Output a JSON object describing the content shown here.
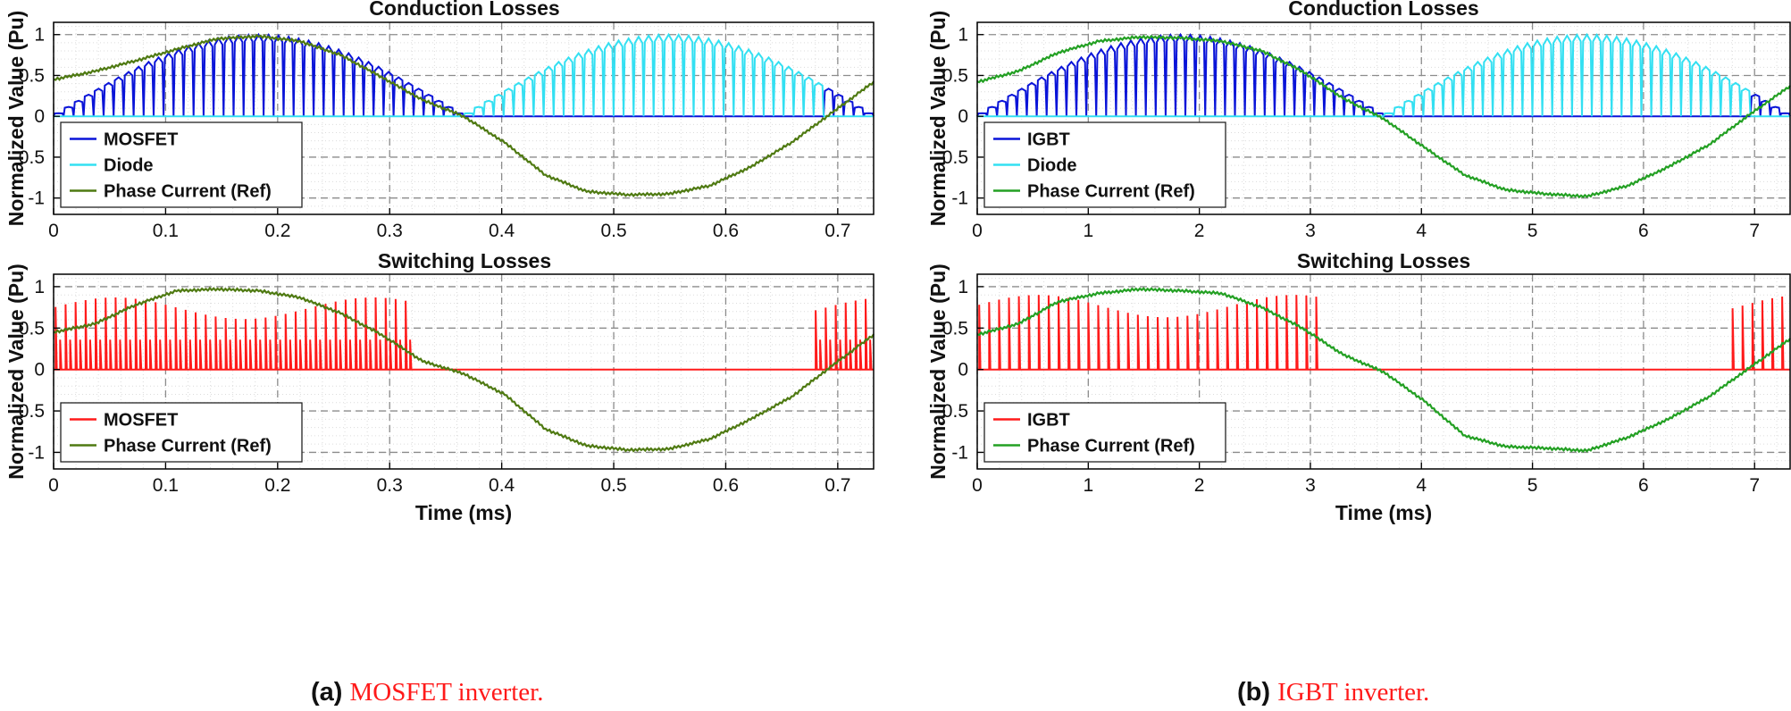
{
  "chart_data": [
    {
      "type": "line",
      "title": "Conduction Losses",
      "xlabel": "",
      "ylabel": "Normalized Value (Pu)",
      "xlim": [
        0,
        0.732
      ],
      "ylim": [
        -1.2,
        1.15
      ],
      "xticks": [
        0,
        0.1,
        0.2,
        0.3,
        0.4,
        0.5,
        0.6,
        0.7
      ],
      "xtick_labels": [
        "0",
        "0.1",
        "0.2",
        "0.3",
        "0.4",
        "0.5",
        "0.6",
        "0.7"
      ],
      "yticks": [
        -1,
        -0.5,
        0,
        0.5,
        1
      ],
      "ytick_labels": [
        "-1",
        "-0.5",
        "0",
        "0.5",
        "1"
      ],
      "grid": true,
      "legend_position": "bottom-left",
      "x_period": 0.732,
      "pulses_per_period": 82,
      "series": [
        {
          "name": "MOSFET",
          "color": "#0a14d8",
          "kind": "device-pulse",
          "peak": 1.0,
          "from_ratio": 0,
          "to_ratio": 0.5
        },
        {
          "name": "Diode",
          "color": "#33e0f2",
          "kind": "device-pulse",
          "peak": 1.0,
          "from_ratio": 0.5,
          "to_ratio": 1.0
        },
        {
          "name": "Phase Current (Ref)",
          "color": "#4f7a12",
          "kind": "reference",
          "x_ratio": [
            0,
            0.05,
            0.1,
            0.15,
            0.2,
            0.25,
            0.3,
            0.35,
            0.4,
            0.45,
            0.5,
            0.55,
            0.6,
            0.65,
            0.7,
            0.75,
            0.8,
            0.85,
            0.9,
            0.95,
            1.0
          ],
          "values": [
            0.45,
            0.55,
            0.68,
            0.82,
            0.95,
            0.98,
            0.92,
            0.75,
            0.48,
            0.2,
            0.0,
            -0.32,
            -0.72,
            -0.92,
            -0.96,
            -0.95,
            -0.85,
            -0.62,
            -0.32,
            0.05,
            0.42
          ]
        }
      ]
    },
    {
      "type": "line",
      "title": "Conduction Losses",
      "xlabel": "",
      "ylabel": "Normalized Value (Pu)",
      "xlim": [
        0,
        7.32
      ],
      "ylim": [
        -1.2,
        1.15
      ],
      "xticks": [
        0,
        1,
        2,
        3,
        4,
        5,
        6,
        7
      ],
      "xtick_labels": [
        "0",
        "1",
        "2",
        "3",
        "4",
        "5",
        "6",
        "7"
      ],
      "yticks": [
        -1,
        -0.5,
        0,
        0.5,
        1
      ],
      "ytick_labels": [
        "-1",
        "-0.5",
        "0",
        "0.5",
        "1"
      ],
      "grid": true,
      "legend_position": "bottom-left",
      "x_period": 7.32,
      "pulses_per_period": 82,
      "series": [
        {
          "name": "IGBT",
          "color": "#0a14d8",
          "kind": "device-pulse",
          "peak": 1.0,
          "from_ratio": 0,
          "to_ratio": 0.5
        },
        {
          "name": "Diode",
          "color": "#33e0f2",
          "kind": "device-pulse",
          "peak": 1.0,
          "from_ratio": 0.5,
          "to_ratio": 1.0
        },
        {
          "name": "Phase Current (Ref)",
          "color": "#23a023",
          "kind": "reference",
          "x_ratio": [
            0,
            0.05,
            0.1,
            0.15,
            0.2,
            0.25,
            0.3,
            0.35,
            0.4,
            0.45,
            0.5,
            0.55,
            0.6,
            0.65,
            0.7,
            0.75,
            0.8,
            0.85,
            0.9,
            0.95,
            1.0
          ],
          "values": [
            0.42,
            0.55,
            0.78,
            0.92,
            0.97,
            0.96,
            0.92,
            0.8,
            0.55,
            0.22,
            -0.03,
            -0.38,
            -0.72,
            -0.9,
            -0.95,
            -0.98,
            -0.85,
            -0.62,
            -0.35,
            0.02,
            0.37
          ]
        }
      ]
    },
    {
      "type": "line",
      "title": "Switching Losses",
      "xlabel": "Time (ms)",
      "ylabel": "Normalized Value (Pu)",
      "xlim": [
        0,
        0.732
      ],
      "ylim": [
        -1.2,
        1.15
      ],
      "xticks": [
        0,
        0.1,
        0.2,
        0.3,
        0.4,
        0.5,
        0.6,
        0.7
      ],
      "xtick_labels": [
        "0",
        "0.1",
        "0.2",
        "0.3",
        "0.4",
        "0.5",
        "0.6",
        "0.7"
      ],
      "yticks": [
        -1,
        -0.5,
        0,
        0.5,
        1
      ],
      "ytick_labels": [
        "-1",
        "-0.5",
        "0",
        "0.5",
        "1"
      ],
      "grid": true,
      "legend_position": "bottom-left",
      "x_period": 0.732,
      "pulses_per_period": 82,
      "series": [
        {
          "name": "MOSFET",
          "color": "#ff1a1a",
          "kind": "switch-pulse",
          "peak": 0.87,
          "secondary": 0.36,
          "active_until_ratio": 0.435,
          "active_from_ratio": 0.93
        },
        {
          "name": "Phase Current (Ref)",
          "color": "#4f7a12",
          "kind": "reference",
          "x_ratio": [
            0,
            0.05,
            0.1,
            0.15,
            0.2,
            0.25,
            0.3,
            0.35,
            0.4,
            0.45,
            0.5,
            0.55,
            0.6,
            0.65,
            0.7,
            0.75,
            0.8,
            0.85,
            0.9,
            0.95,
            1.0
          ],
          "values": [
            0.45,
            0.55,
            0.78,
            0.95,
            0.97,
            0.95,
            0.87,
            0.68,
            0.42,
            0.1,
            -0.05,
            -0.3,
            -0.72,
            -0.92,
            -0.97,
            -0.96,
            -0.84,
            -0.6,
            -0.33,
            0.05,
            0.42
          ]
        }
      ]
    },
    {
      "type": "line",
      "title": "Switching Losses",
      "xlabel": "Time (ms)",
      "ylabel": "Normalized Value (Pu)",
      "xlim": [
        0,
        7.32
      ],
      "ylim": [
        -1.2,
        1.15
      ],
      "xticks": [
        0,
        1,
        2,
        3,
        4,
        5,
        6,
        7
      ],
      "xtick_labels": [
        "0",
        "1",
        "2",
        "3",
        "4",
        "5",
        "6",
        "7"
      ],
      "yticks": [
        -1,
        -0.5,
        0,
        0.5,
        1
      ],
      "ytick_labels": [
        "-1",
        "-0.5",
        "0",
        "0.5",
        "1"
      ],
      "grid": true,
      "legend_position": "bottom-left",
      "x_period": 7.32,
      "pulses_per_period": 82,
      "series": [
        {
          "name": "IGBT",
          "color": "#ff1a1a",
          "kind": "switch-pulse",
          "peak": 0.9,
          "secondary": 0.0,
          "active_until_ratio": 0.43,
          "active_from_ratio": 0.93
        },
        {
          "name": "Phase Current (Ref)",
          "color": "#23a023",
          "kind": "reference",
          "x_ratio": [
            0,
            0.05,
            0.1,
            0.15,
            0.2,
            0.25,
            0.3,
            0.35,
            0.4,
            0.45,
            0.5,
            0.55,
            0.6,
            0.65,
            0.7,
            0.75,
            0.8,
            0.85,
            0.9,
            0.95,
            1.0
          ],
          "values": [
            0.42,
            0.55,
            0.82,
            0.92,
            0.97,
            0.95,
            0.92,
            0.75,
            0.5,
            0.18,
            -0.03,
            -0.38,
            -0.8,
            -0.93,
            -0.95,
            -0.98,
            -0.82,
            -0.6,
            -0.33,
            0.02,
            0.37
          ]
        }
      ]
    }
  ],
  "captions": {
    "a": {
      "tag": "(a)",
      "text": "MOSFET inverter.",
      "color": "#ff1a1a"
    },
    "b": {
      "tag": "(b)",
      "text": "IGBT inverter.",
      "color": "#ff1a1a"
    }
  }
}
